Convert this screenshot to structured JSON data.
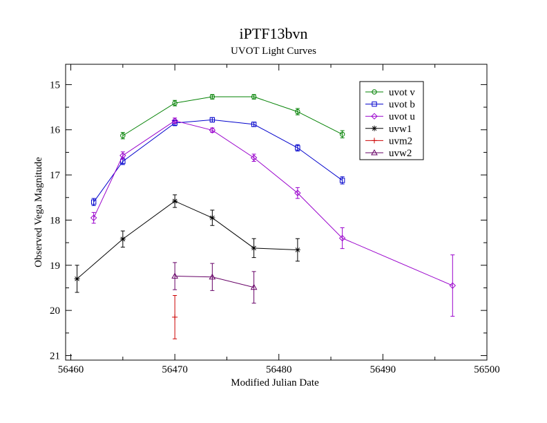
{
  "chart_data": {
    "type": "scatter",
    "title": "iPTF13bvn",
    "subtitle": "UVOT Light Curves",
    "xlabel": "Modified Julian Date",
    "ylabel": "Observed Vega Magnitude",
    "xlim": [
      56459.5,
      56500
    ],
    "ylim": [
      21.1,
      14.55
    ],
    "y_inverted": true,
    "x_ticks": [
      56460,
      56470,
      56480,
      56490,
      56500
    ],
    "x_tick_labels": [
      "56460",
      "56470",
      "56480",
      "56490",
      "56500"
    ],
    "y_ticks": [
      15,
      16,
      17,
      18,
      19,
      20,
      21
    ],
    "y_tick_labels": [
      "15",
      "16",
      "17",
      "18",
      "19",
      "20",
      "21"
    ],
    "grid": false,
    "legend_position": "top-right",
    "series": [
      {
        "name": "uvot v",
        "color": "#008000",
        "marker": "circle",
        "connected": true,
        "x": [
          56465.0,
          56470.0,
          56473.6,
          56477.6,
          56481.8,
          56486.1
        ],
        "y": [
          16.13,
          15.41,
          15.27,
          15.27,
          15.6,
          16.1
        ],
        "err": [
          0.07,
          0.06,
          0.05,
          0.05,
          0.07,
          0.08
        ]
      },
      {
        "name": "uvot b",
        "color": "#0000cc",
        "marker": "square",
        "connected": true,
        "x": [
          56462.2,
          56465.0,
          56470.0,
          56473.6,
          56477.6,
          56481.8,
          56486.1
        ],
        "y": [
          17.6,
          16.7,
          15.85,
          15.78,
          15.88,
          16.4,
          17.12
        ],
        "err": [
          0.08,
          0.07,
          0.06,
          0.05,
          0.05,
          0.07,
          0.08
        ]
      },
      {
        "name": "uvot u",
        "color": "#9900cc",
        "marker": "diamond",
        "connected": true,
        "x": [
          56462.2,
          56465.0,
          56470.0,
          56473.6,
          56477.6,
          56481.8,
          56486.1,
          56496.7
        ],
        "y": [
          17.95,
          16.57,
          15.8,
          16.01,
          16.62,
          17.4,
          18.4,
          19.45
        ],
        "err": [
          0.12,
          0.08,
          0.06,
          0.05,
          0.08,
          0.12,
          0.23,
          0.68
        ]
      },
      {
        "name": "uvw1",
        "color": "#000000",
        "marker": "star",
        "connected": true,
        "x": [
          56460.6,
          56465.0,
          56470.0,
          56473.6,
          56477.6,
          56481.8
        ],
        "y": [
          19.3,
          18.42,
          17.58,
          17.95,
          18.62,
          18.66
        ],
        "err": [
          0.3,
          0.18,
          0.14,
          0.17,
          0.21,
          0.25
        ]
      },
      {
        "name": "uvm2",
        "color": "#cc0000",
        "marker": "plus",
        "connected": false,
        "x": [
          56470.0
        ],
        "y": [
          20.15
        ],
        "err": [
          0.48
        ]
      },
      {
        "name": "uvw2",
        "color": "#660066",
        "marker": "triangle",
        "connected": true,
        "x": [
          56470.0,
          56473.6,
          56477.6
        ],
        "y": [
          19.24,
          19.26,
          19.49
        ],
        "err": [
          0.3,
          0.3,
          0.35
        ]
      }
    ]
  }
}
